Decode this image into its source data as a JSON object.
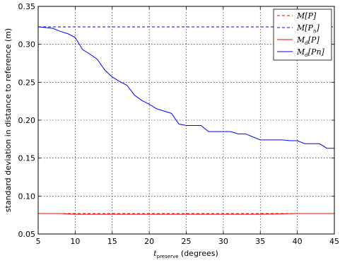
{
  "chart_data": {
    "type": "line",
    "title": "",
    "xlabel_symbol": "t",
    "xlabel_subscript": "preserve",
    "xlabel_unit": "(degrees)",
    "ylabel": "standard deviation in distance to reference (m)",
    "xlim": [
      5,
      45
    ],
    "ylim": [
      0.05,
      0.35
    ],
    "xticks": [
      5,
      10,
      15,
      20,
      25,
      30,
      35,
      40,
      45
    ],
    "yticks": [
      0.05,
      0.1,
      0.15,
      0.2,
      0.25,
      0.3,
      0.35
    ],
    "ytick_labels": [
      "0.05",
      "0.10",
      "0.15",
      "0.20",
      "0.25",
      "0.30",
      "0.35"
    ],
    "grid": true,
    "legend_position": "top-right",
    "series": [
      {
        "name": "M[P]",
        "name_base": "M[P]",
        "name_sub": "",
        "name_tail": "",
        "color": "#ff0000",
        "dash": true,
        "x": [
          5,
          45
        ],
        "y": [
          0.077,
          0.077
        ]
      },
      {
        "name": "M[Pn]",
        "name_base": "M[P",
        "name_sub": "n",
        "name_tail": "]",
        "color": "#0000ff",
        "dash": true,
        "x": [
          5,
          45
        ],
        "y": [
          0.323,
          0.323
        ]
      },
      {
        "name": "Md[P]",
        "name_base": "M",
        "name_sub": "d",
        "name_tail": "[P]",
        "color": "#ff0000",
        "dash": false,
        "x": [
          5,
          8,
          10,
          15,
          20,
          25,
          30,
          35,
          40,
          45
        ],
        "y": [
          0.077,
          0.077,
          0.076,
          0.076,
          0.076,
          0.076,
          0.076,
          0.076,
          0.077,
          0.077
        ]
      },
      {
        "name": "Md[Pn]",
        "name_base": "M",
        "name_sub": "d",
        "name_tail": "[Pn]",
        "color": "#0000ff",
        "dash": false,
        "x": [
          5,
          6,
          7,
          8,
          9,
          10,
          11,
          12,
          13,
          14,
          15,
          16,
          17,
          18,
          19,
          20,
          21,
          22,
          23,
          24,
          25,
          26,
          27,
          28,
          29,
          30,
          31,
          32,
          33,
          34,
          35,
          36,
          37,
          38,
          39,
          40,
          41,
          42,
          43,
          44,
          45
        ],
        "y": [
          0.323,
          0.322,
          0.321,
          0.317,
          0.314,
          0.309,
          0.293,
          0.287,
          0.28,
          0.266,
          0.257,
          0.251,
          0.246,
          0.233,
          0.226,
          0.221,
          0.215,
          0.212,
          0.209,
          0.195,
          0.193,
          0.193,
          0.193,
          0.185,
          0.185,
          0.185,
          0.185,
          0.182,
          0.182,
          0.178,
          0.174,
          0.174,
          0.174,
          0.174,
          0.173,
          0.173,
          0.169,
          0.169,
          0.169,
          0.163,
          0.163
        ]
      }
    ]
  }
}
